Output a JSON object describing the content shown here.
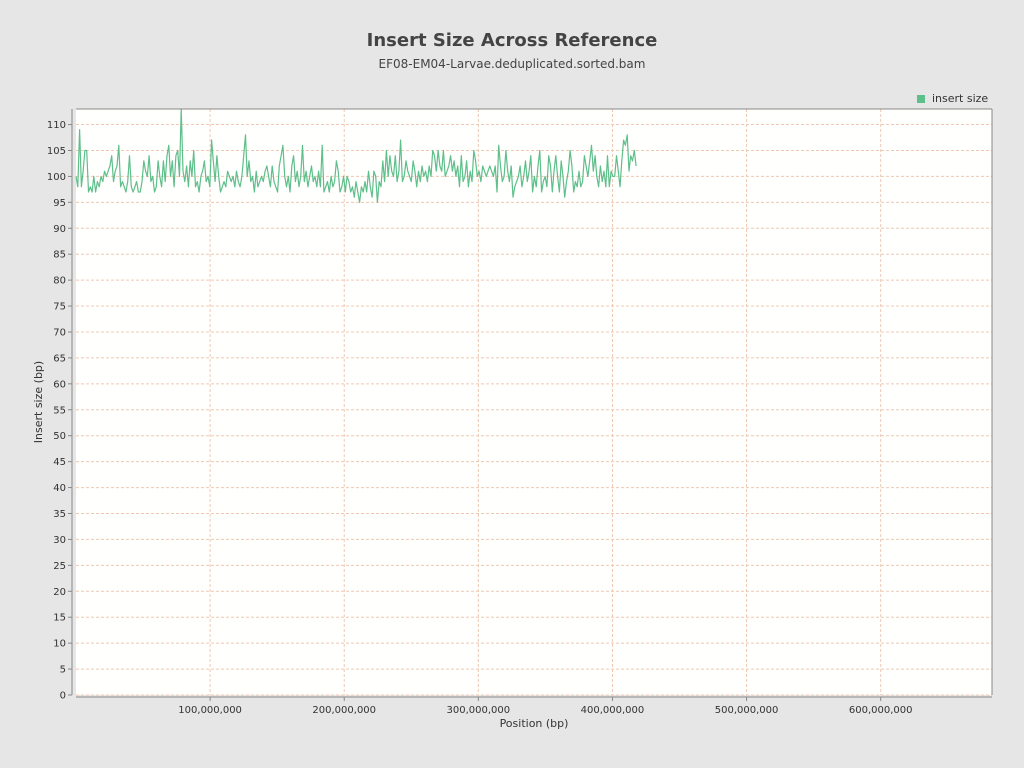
{
  "chart_data": {
    "type": "line",
    "title": "Insert Size Across Reference",
    "subtitle": "EF08-EM04-Larvae.deduplicated.sorted.bam",
    "xlabel": "Position (bp)",
    "ylabel": "Insert size (bp)",
    "xlim": [
      0,
      683000000
    ],
    "ylim": [
      0,
      113
    ],
    "x_ticks": [
      100000000,
      200000000,
      300000000,
      400000000,
      500000000,
      600000000
    ],
    "x_tick_labels": [
      "100,000,000",
      "200,000,000",
      "300,000,000",
      "400,000,000",
      "500,000,000",
      "600,000,000"
    ],
    "y_ticks": [
      0,
      5,
      10,
      15,
      20,
      25,
      30,
      35,
      40,
      45,
      50,
      55,
      60,
      65,
      70,
      75,
      80,
      85,
      90,
      95,
      100,
      105,
      110
    ],
    "y_tick_labels": [
      "0",
      "5",
      "10",
      "15",
      "20",
      "25",
      "30",
      "35",
      "40",
      "45",
      "50",
      "55",
      "60",
      "65",
      "70",
      "75",
      "80",
      "85",
      "90",
      "95",
      "100",
      "105",
      "110"
    ],
    "grid": true,
    "legend_position": "top-right",
    "series": [
      {
        "name": "insert size",
        "color": "#5ebf8a",
        "x_start": 0,
        "x_step": 1330000,
        "values": [
          100,
          98,
          109,
          98,
          101,
          105,
          105,
          97,
          98,
          97,
          100,
          97,
          99,
          98,
          100,
          99,
          101,
          100,
          101,
          102,
          104,
          99,
          101,
          102,
          106,
          98,
          99,
          98,
          97,
          99,
          104,
          98,
          97,
          98,
          99,
          97,
          97,
          99,
          103,
          101,
          100,
          104,
          99,
          100,
          97,
          98,
          103,
          100,
          98,
          103,
          99,
          104,
          106,
          100,
          103,
          98,
          104,
          105,
          100,
          113,
          101,
          99,
          102,
          98,
          103,
          100,
          105,
          98,
          99,
          97,
          100,
          101,
          103,
          99,
          100,
          98,
          107,
          103,
          99,
          104,
          100,
          97,
          98,
          99,
          98,
          101,
          100,
          99,
          100,
          98,
          101,
          99,
          98,
          100,
          104,
          108,
          100,
          103,
          99,
          100,
          97,
          101,
          98,
          99,
          100,
          99,
          101,
          102,
          100,
          98,
          102,
          99,
          98,
          97,
          102,
          104,
          106,
          100,
          98,
          100,
          97,
          102,
          104,
          99,
          101,
          98,
          100,
          106,
          99,
          101,
          98,
          100,
          102,
          99,
          100,
          98,
          101,
          98,
          106,
          97,
          98,
          99,
          97,
          100,
          98,
          99,
          103,
          101,
          97,
          98,
          100,
          97,
          100,
          99,
          97,
          98,
          96,
          99,
          97,
          95,
          98,
          97,
          99,
          97,
          101,
          98,
          96,
          101,
          100,
          95,
          99,
          98,
          103,
          99,
          105,
          100,
          104,
          101,
          100,
          104,
          99,
          101,
          107,
          99,
          100,
          103,
          101,
          100,
          99,
          103,
          101,
          98,
          101,
          99,
          102,
          100,
          101,
          99,
          102,
          100,
          105,
          104,
          101,
          105,
          102,
          101,
          105,
          100,
          101,
          102,
          104,
          101,
          103,
          100,
          102,
          98,
          104,
          99,
          100,
          103,
          98,
          101,
          99,
          105,
          103,
          100,
          101,
          99,
          102,
          101,
          100,
          101,
          102,
          101,
          100,
          102,
          97,
          106,
          102,
          99,
          100,
          105,
          101,
          99,
          102,
          96,
          98,
          99,
          100,
          102,
          98,
          100,
          103,
          99,
          101,
          104,
          97,
          100,
          98,
          102,
          105,
          97,
          99,
          100,
          98,
          104,
          102,
          97,
          101,
          104,
          100,
          97,
          103,
          100,
          96,
          99,
          101,
          105,
          102,
          97,
          99,
          98,
          101,
          98,
          99,
          104,
          102,
          100,
          103,
          106,
          101,
          104,
          100,
          98,
          102,
          99,
          101,
          98,
          104,
          98,
          101,
          100,
          100,
          104,
          101,
          98,
          103,
          107,
          106,
          108,
          101,
          104,
          103,
          105,
          102
        ]
      }
    ]
  }
}
